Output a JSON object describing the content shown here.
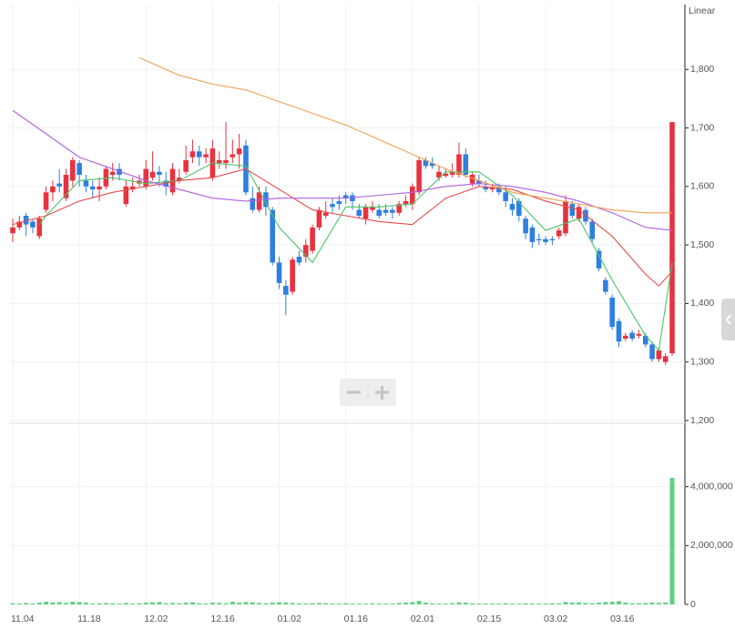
{
  "chart_data": {
    "type": "candlestick",
    "scale_label": "Linear",
    "categories": [
      "11.04",
      null,
      null,
      null,
      null,
      null,
      null,
      null,
      null,
      null,
      "11.18",
      null,
      null,
      null,
      null,
      null,
      null,
      null,
      null,
      null,
      "12.02",
      null,
      null,
      null,
      null,
      null,
      null,
      null,
      null,
      null,
      "12.16",
      null,
      null,
      null,
      null,
      null,
      null,
      null,
      null,
      null,
      "01.02",
      null,
      null,
      null,
      null,
      null,
      null,
      null,
      null,
      null,
      "01.16",
      null,
      null,
      null,
      null,
      null,
      null,
      null,
      null,
      null,
      "02.01",
      null,
      null,
      null,
      null,
      null,
      null,
      null,
      null,
      null,
      "02.15",
      null,
      null,
      null,
      null,
      null,
      null,
      null,
      null,
      null,
      "03.02",
      null,
      null,
      null,
      null,
      null,
      null,
      null,
      null,
      null,
      "03.16",
      null,
      null,
      null,
      null,
      null,
      null,
      null,
      null,
      null
    ],
    "open": [
      1520,
      1530,
      1550,
      1540,
      1515,
      1560,
      1590,
      1605,
      1580,
      1610,
      1640,
      1610,
      1600,
      1595,
      1600,
      1620,
      1630,
      1570,
      1595,
      1605,
      1600,
      1615,
      1625,
      1610,
      1590,
      1610,
      1625,
      1650,
      1660,
      1650,
      1615,
      1640,
      1640,
      1650,
      1655,
      1670,
      1580,
      1560,
      1590,
      1560,
      1470,
      1430,
      1420,
      1480,
      1480,
      1490,
      1530,
      1550,
      1570,
      1575,
      1585,
      1585,
      1560,
      1545,
      1560,
      1560,
      1560,
      1560,
      1555,
      1570,
      1570,
      1590,
      1645,
      1640,
      1615,
      1618,
      1620,
      1620,
      1655,
      1605,
      1610,
      1600,
      1595,
      1598,
      1590,
      1570,
      1575,
      1545,
      1530,
      1510,
      1510,
      1510,
      1515,
      1520,
      1570,
      1545,
      1560,
      1540,
      1490,
      1440,
      1410,
      1370,
      1340,
      1350,
      1345,
      1345,
      1330,
      1305,
      1300,
      1315
    ],
    "high": [
      1545,
      1550,
      1555,
      1545,
      1550,
      1600,
      1610,
      1630,
      1630,
      1650,
      1645,
      1620,
      1610,
      1615,
      1635,
      1640,
      1640,
      1610,
      1615,
      1620,
      1645,
      1660,
      1635,
      1625,
      1640,
      1630,
      1670,
      1680,
      1670,
      1665,
      1680,
      1660,
      1710,
      1680,
      1690,
      1680,
      1600,
      1600,
      1600,
      1565,
      1480,
      1440,
      1480,
      1490,
      1510,
      1535,
      1565,
      1575,
      1580,
      1585,
      1590,
      1590,
      1570,
      1570,
      1575,
      1570,
      1570,
      1565,
      1575,
      1585,
      1605,
      1650,
      1650,
      1650,
      1635,
      1630,
      1640,
      1675,
      1665,
      1625,
      1620,
      1610,
      1605,
      1605,
      1600,
      1580,
      1580,
      1550,
      1535,
      1520,
      1515,
      1515,
      1530,
      1585,
      1575,
      1570,
      1565,
      1545,
      1495,
      1445,
      1415,
      1375,
      1350,
      1355,
      1355,
      1350,
      1335,
      1325,
      1315,
      1710
    ],
    "low": [
      1505,
      1525,
      1515,
      1520,
      1510,
      1555,
      1575,
      1590,
      1575,
      1600,
      1600,
      1590,
      1580,
      1575,
      1595,
      1610,
      1610,
      1565,
      1590,
      1600,
      1595,
      1610,
      1600,
      1585,
      1585,
      1605,
      1620,
      1640,
      1635,
      1640,
      1610,
      1630,
      1630,
      1640,
      1630,
      1585,
      1555,
      1555,
      1550,
      1465,
      1425,
      1380,
      1415,
      1465,
      1470,
      1485,
      1525,
      1545,
      1555,
      1560,
      1570,
      1560,
      1545,
      1535,
      1555,
      1545,
      1550,
      1545,
      1550,
      1565,
      1560,
      1585,
      1630,
      1630,
      1610,
      1615,
      1615,
      1615,
      1615,
      1600,
      1600,
      1590,
      1590,
      1585,
      1565,
      1550,
      1540,
      1510,
      1495,
      1500,
      1500,
      1500,
      1510,
      1515,
      1545,
      1540,
      1535,
      1505,
      1455,
      1415,
      1355,
      1325,
      1335,
      1335,
      1340,
      1325,
      1300,
      1300,
      1295,
      1310
    ],
    "close": [
      1530,
      1540,
      1535,
      1530,
      1545,
      1590,
      1600,
      1600,
      1620,
      1645,
      1620,
      1600,
      1595,
      1600,
      1630,
      1625,
      1620,
      1600,
      1600,
      1610,
      1630,
      1625,
      1620,
      1600,
      1630,
      1615,
      1645,
      1660,
      1650,
      1655,
      1665,
      1645,
      1645,
      1655,
      1665,
      1590,
      1560,
      1590,
      1565,
      1470,
      1435,
      1415,
      1475,
      1470,
      1500,
      1530,
      1560,
      1555,
      1565,
      1570,
      1580,
      1575,
      1550,
      1565,
      1565,
      1550,
      1555,
      1555,
      1570,
      1575,
      1600,
      1645,
      1635,
      1635,
      1625,
      1622,
      1625,
      1655,
      1620,
      1620,
      1605,
      1595,
      1598,
      1590,
      1575,
      1560,
      1550,
      1520,
      1505,
      1508,
      1505,
      1508,
      1525,
      1575,
      1550,
      1565,
      1540,
      1510,
      1460,
      1420,
      1360,
      1335,
      1345,
      1340,
      1348,
      1330,
      1305,
      1320,
      1310,
      1710
    ],
    "up_color": "#e8323f",
    "down_color": "#2f7fe0",
    "ylim": [
      1200,
      1900
    ],
    "yticks": [
      {
        "value": 1200,
        "label": "1,200"
      },
      {
        "value": 1300,
        "label": "1,300"
      },
      {
        "value": 1400,
        "label": "1,400"
      },
      {
        "value": 1500,
        "label": "1,500"
      },
      {
        "value": 1600,
        "label": "1,600"
      },
      {
        "value": 1700,
        "label": "1,700"
      },
      {
        "value": 1800,
        "label": "1,800"
      }
    ],
    "grid": true,
    "ma_lines": [
      {
        "color": "#4cc46a",
        "x": [
          4,
          5,
          10,
          15,
          20,
          25,
          30,
          35,
          40,
          45,
          50,
          55,
          60,
          65,
          70,
          75,
          80,
          85,
          90,
          95,
          97,
          99
        ],
        "values": [
          1535,
          1550,
          1610,
          1615,
          1605,
          1610,
          1640,
          1635,
          1530,
          1470,
          1565,
          1565,
          1570,
          1625,
          1625,
          1585,
          1525,
          1545,
          1440,
          1345,
          1320,
          1470
        ]
      },
      {
        "color": "#e84a4a",
        "x": [
          0,
          5,
          10,
          15,
          20,
          25,
          30,
          35,
          40,
          45,
          50,
          55,
          60,
          65,
          70,
          75,
          80,
          85,
          90,
          95,
          97,
          99
        ],
        "values": [
          1535,
          1550,
          1575,
          1590,
          1600,
          1610,
          1615,
          1630,
          1595,
          1560,
          1550,
          1540,
          1535,
          1580,
          1600,
          1595,
          1575,
          1560,
          1515,
          1450,
          1430,
          1455
        ]
      },
      {
        "color": "#b05ee0",
        "x": [
          0,
          5,
          10,
          15,
          20,
          25,
          30,
          35,
          40,
          45,
          50,
          55,
          60,
          65,
          70,
          75,
          80,
          85,
          90,
          95,
          99
        ],
        "values": [
          1730,
          1690,
          1650,
          1630,
          1610,
          1595,
          1580,
          1575,
          1580,
          1580,
          1580,
          1585,
          1590,
          1600,
          1605,
          1600,
          1590,
          1575,
          1555,
          1530,
          1525
        ]
      },
      {
        "color": "#f0a050",
        "x": [
          19,
          25,
          30,
          35,
          40,
          45,
          50,
          55,
          60,
          65,
          70,
          75,
          80,
          85,
          90,
          95,
          99
        ],
        "values": [
          1820,
          1790,
          1775,
          1765,
          1745,
          1725,
          1705,
          1680,
          1655,
          1630,
          1610,
          1590,
          1580,
          1570,
          1560,
          1555,
          1555
        ]
      }
    ],
    "volume": {
      "color": "#5fd07e",
      "ylim": [
        0,
        6000000
      ],
      "yticks": [
        0,
        {
          "value": 2000000,
          "label": "2,000,000"
        },
        {
          "value": 4000000,
          "label": "4,000,000"
        }
      ],
      "values": [
        40000,
        30000,
        50000,
        30000,
        60000,
        90000,
        70000,
        80000,
        50000,
        90000,
        80000,
        60000,
        30000,
        40000,
        50000,
        40000,
        30000,
        50000,
        30000,
        40000,
        60000,
        70000,
        80000,
        40000,
        50000,
        40000,
        60000,
        70000,
        40000,
        30000,
        60000,
        50000,
        40000,
        90000,
        60000,
        80000,
        70000,
        50000,
        40000,
        60000,
        70000,
        60000,
        50000,
        40000,
        30000,
        40000,
        50000,
        40000,
        30000,
        30000,
        40000,
        30000,
        30000,
        30000,
        40000,
        30000,
        30000,
        30000,
        50000,
        60000,
        80000,
        120000,
        60000,
        40000,
        30000,
        30000,
        40000,
        70000,
        60000,
        40000,
        30000,
        30000,
        30000,
        30000,
        40000,
        30000,
        30000,
        40000,
        30000,
        30000,
        30000,
        40000,
        40000,
        80000,
        60000,
        70000,
        50000,
        40000,
        60000,
        80000,
        90000,
        110000,
        60000,
        40000,
        40000,
        50000,
        60000,
        50000,
        60000,
        4300000
      ]
    }
  }
}
